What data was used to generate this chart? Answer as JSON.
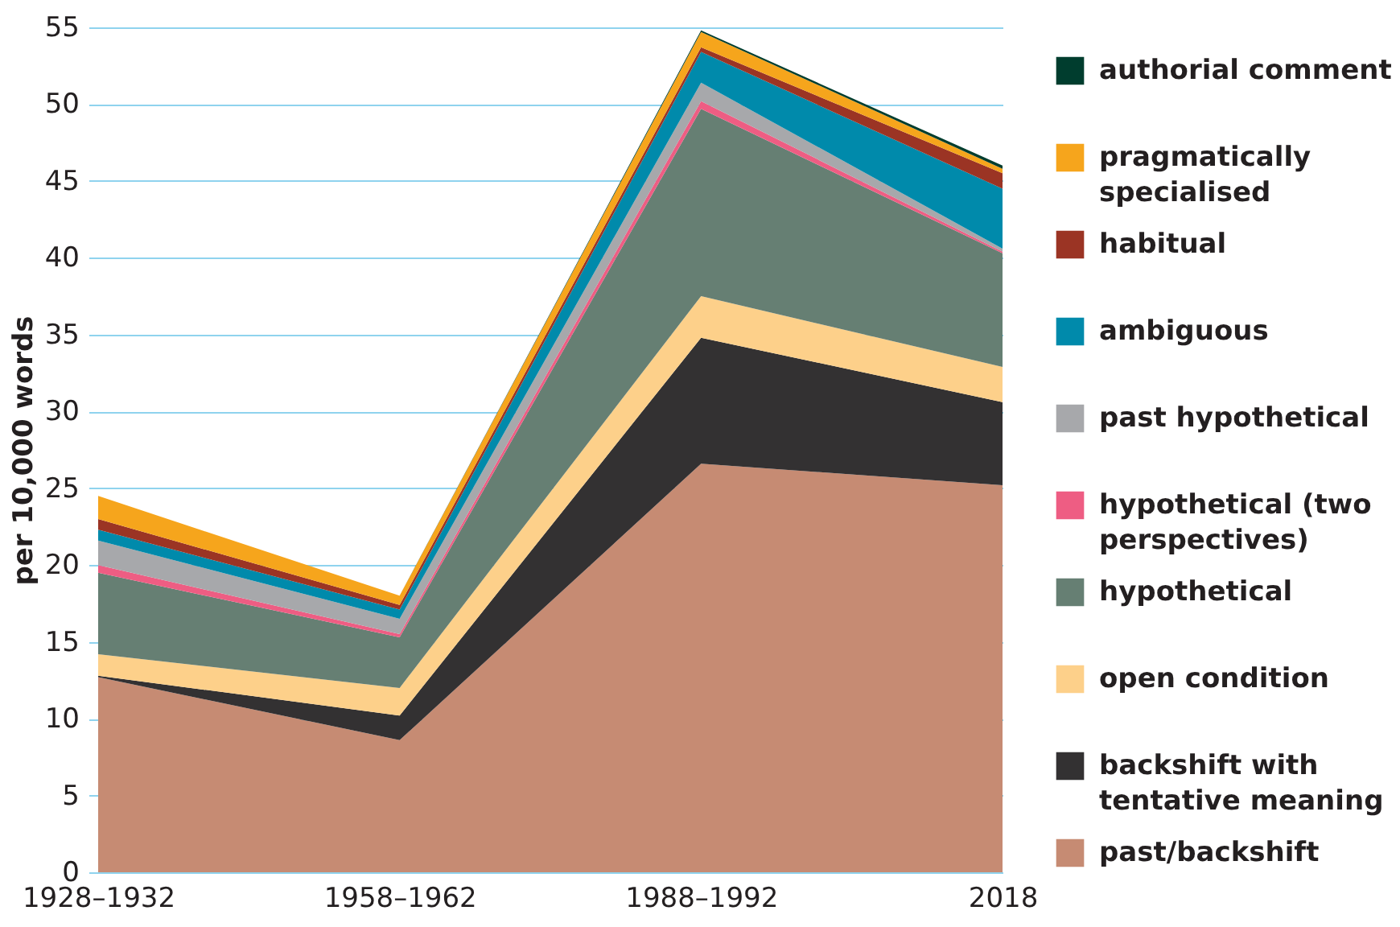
{
  "chart_data": {
    "type": "area",
    "stacked": true,
    "ylabel": "per 10,000 words",
    "categories": [
      "1928–1932",
      "1958–1962",
      "1988–1992",
      "2018"
    ],
    "ylim": [
      0,
      55
    ],
    "yticks": [
      0,
      5,
      10,
      15,
      20,
      25,
      30,
      35,
      40,
      45,
      50,
      55
    ],
    "grid": "y",
    "legend": "right",
    "series": [
      {
        "name": "past/backshift",
        "color": "#c68b73",
        "values": [
          12.7,
          8.6,
          26.6,
          25.2
        ]
      },
      {
        "name": "backshift with tentative meaning",
        "color": "#333132",
        "values": [
          0.1,
          1.6,
          8.2,
          5.4
        ]
      },
      {
        "name": "open condition",
        "color": "#fdd08a",
        "values": [
          1.4,
          1.8,
          2.7,
          2.3
        ]
      },
      {
        "name": "hypothetical",
        "color": "#667f73",
        "values": [
          5.3,
          3.3,
          12.2,
          7.4
        ]
      },
      {
        "name": "hypothetical (two perspectives)",
        "color": "#ee5d83",
        "values": [
          0.5,
          0.2,
          0.5,
          0.1
        ]
      },
      {
        "name": "past hypothetical",
        "color": "#a7a8ab",
        "values": [
          1.6,
          1.0,
          1.2,
          0.2
        ]
      },
      {
        "name": "ambiguous",
        "color": "#008aab",
        "values": [
          0.7,
          0.6,
          2.0,
          3.9
        ]
      },
      {
        "name": "habitual",
        "color": "#9b3424",
        "values": [
          0.7,
          0.3,
          0.3,
          1.0
        ]
      },
      {
        "name": "pragmatically specialised",
        "color": "#f6a51c",
        "values": [
          1.5,
          0.6,
          1.0,
          0.3
        ]
      },
      {
        "name": "authorial comment",
        "color": "#003d2e",
        "values": [
          0.0,
          0.0,
          0.1,
          0.2
        ]
      }
    ]
  }
}
